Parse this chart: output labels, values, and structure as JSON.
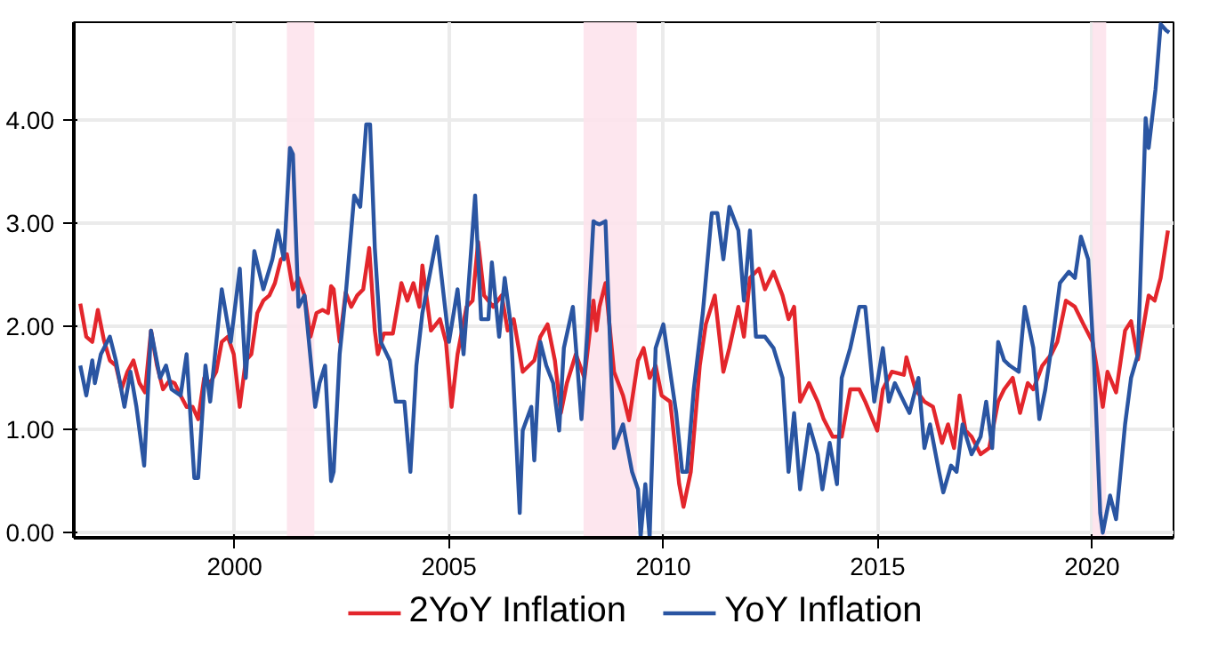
{
  "chart_data": {
    "type": "line",
    "xlim": [
      1996.25,
      2021.9
    ],
    "ylim": [
      -0.05,
      4.95
    ],
    "xticks": [
      2000,
      2005,
      2010,
      2015,
      2020
    ],
    "yticks": [
      {
        "value": 0,
        "label": "0.00"
      },
      {
        "value": 1,
        "label": "1.00"
      },
      {
        "value": 2,
        "label": "2.00"
      },
      {
        "value": 3,
        "label": "3.00"
      },
      {
        "value": 4,
        "label": "4.00"
      }
    ],
    "grid": true,
    "legend": "bottom",
    "line_style": "solid",
    "bands": [
      {
        "axis": "x",
        "from": 2001.22,
        "to": 2001.86,
        "color": "#fde3ec"
      },
      {
        "axis": "x",
        "from": 2008.14,
        "to": 2009.38,
        "color": "#fde3ec"
      },
      {
        "axis": "x",
        "from": 2020.01,
        "to": 2020.33,
        "color": "#fde3ec"
      }
    ],
    "series": [
      {
        "name": "2YoY Inflation",
        "color": "#e3262c",
        "x": [
          1996.4,
          1996.54,
          1996.68,
          1996.81,
          1996.95,
          1997.09,
          1997.23,
          1997.36,
          1997.5,
          1997.64,
          1997.78,
          1997.91,
          1998.05,
          1998.19,
          1998.33,
          1998.47,
          1998.6,
          1998.74,
          1998.88,
          1999.02,
          1999.15,
          1999.29,
          1999.43,
          1999.57,
          1999.7,
          1999.84,
          1999.98,
          2000.12,
          2000.26,
          2000.39,
          2000.53,
          2000.67,
          2000.81,
          2000.94,
          2001.08,
          2001.22,
          2001.36,
          2001.49,
          2001.63,
          2001.77,
          2001.91,
          2002.05,
          2002.18,
          2002.25,
          2002.31,
          2002.45,
          2002.59,
          2002.72,
          2002.86,
          2003.0,
          2003.14,
          2003.27,
          2003.34,
          2003.48,
          2003.69,
          2003.89,
          2004.03,
          2004.17,
          2004.31,
          2004.38,
          2004.58,
          2004.79,
          2004.93,
          2005.06,
          2005.2,
          2005.41,
          2005.55,
          2005.68,
          2005.82,
          2006.03,
          2006.23,
          2006.37,
          2006.51,
          2006.72,
          2006.99,
          2007.13,
          2007.3,
          2007.47,
          2007.61,
          2007.75,
          2007.96,
          2008.16,
          2008.37,
          2008.44,
          2008.51,
          2008.65,
          2008.85,
          2009.06,
          2009.2,
          2009.41,
          2009.54,
          2009.68,
          2009.82,
          2009.96,
          2010.16,
          2010.37,
          2010.47,
          2010.64,
          2010.85,
          2010.99,
          2011.2,
          2011.4,
          2011.54,
          2011.75,
          2011.88,
          2012.02,
          2012.23,
          2012.37,
          2012.57,
          2012.78,
          2012.92,
          2013.05,
          2013.19,
          2013.4,
          2013.6,
          2013.74,
          2013.95,
          2014.16,
          2014.36,
          2014.57,
          2014.71,
          2014.99,
          2015.12,
          2015.33,
          2015.61,
          2015.67,
          2015.88,
          2016.09,
          2016.29,
          2016.5,
          2016.64,
          2016.78,
          2016.91,
          2017.05,
          2017.19,
          2017.4,
          2017.6,
          2017.81,
          2017.95,
          2018.15,
          2018.32,
          2018.5,
          2018.63,
          2018.84,
          2019.05,
          2019.19,
          2019.39,
          2019.6,
          2019.8,
          2020.01,
          2020.15,
          2020.25,
          2020.36,
          2020.56,
          2020.77,
          2020.91,
          2021.07,
          2021.32,
          2021.46,
          2021.6,
          2021.77
        ],
        "values": [
          2.22,
          1.9,
          1.85,
          2.16,
          1.87,
          1.67,
          1.62,
          1.39,
          1.56,
          1.67,
          1.45,
          1.36,
          1.96,
          1.62,
          1.39,
          1.47,
          1.45,
          1.33,
          1.22,
          1.22,
          1.1,
          1.5,
          1.45,
          1.56,
          1.85,
          1.9,
          1.73,
          1.22,
          1.67,
          1.73,
          2.13,
          2.25,
          2.3,
          2.42,
          2.65,
          2.7,
          2.36,
          2.47,
          2.3,
          1.9,
          2.13,
          2.16,
          2.13,
          2.39,
          2.36,
          1.85,
          2.33,
          2.19,
          2.3,
          2.36,
          2.76,
          1.96,
          1.73,
          1.93,
          1.93,
          2.42,
          2.25,
          2.42,
          2.19,
          2.59,
          1.96,
          2.07,
          1.85,
          1.22,
          1.73,
          2.19,
          2.25,
          2.82,
          2.3,
          2.19,
          2.3,
          1.96,
          2.07,
          1.56,
          1.67,
          1.9,
          2.02,
          1.67,
          1.16,
          1.45,
          1.73,
          1.5,
          2.25,
          1.96,
          2.19,
          2.42,
          1.56,
          1.33,
          1.09,
          1.67,
          1.79,
          1.5,
          1.62,
          1.33,
          1.27,
          0.47,
          0.25,
          0.59,
          1.62,
          2.02,
          2.3,
          1.56,
          1.79,
          2.19,
          1.9,
          2.47,
          2.56,
          2.36,
          2.53,
          2.3,
          2.07,
          2.19,
          1.27,
          1.45,
          1.27,
          1.1,
          0.93,
          0.93,
          1.39,
          1.39,
          1.27,
          0.99,
          1.39,
          1.56,
          1.53,
          1.7,
          1.39,
          1.27,
          1.22,
          0.87,
          1.05,
          0.82,
          1.33,
          0.99,
          0.93,
          0.76,
          0.82,
          1.27,
          1.39,
          1.5,
          1.16,
          1.45,
          1.39,
          1.62,
          1.73,
          1.85,
          2.25,
          2.19,
          2.02,
          1.85,
          1.5,
          1.22,
          1.56,
          1.36,
          1.96,
          2.05,
          1.68,
          2.3,
          2.25,
          2.47,
          2.93
        ]
      },
      {
        "name": "YoY Inflation",
        "color": "#2a55a2",
        "x": [
          1996.4,
          1996.54,
          1996.68,
          1996.74,
          1996.88,
          1997.09,
          1997.23,
          1997.43,
          1997.57,
          1997.71,
          1997.89,
          1998.05,
          1998.26,
          1998.4,
          1998.53,
          1998.74,
          1998.88,
          1999.06,
          1999.15,
          1999.32,
          1999.43,
          1999.7,
          1999.91,
          2000.12,
          2000.26,
          2000.46,
          2000.67,
          2000.88,
          2001.01,
          2001.15,
          2001.29,
          2001.36,
          2001.49,
          2001.63,
          2001.88,
          2001.98,
          2002.11,
          2002.25,
          2002.31,
          2002.45,
          2002.59,
          2002.79,
          2002.93,
          2003.07,
          2003.16,
          2003.27,
          2003.41,
          2003.62,
          2003.76,
          2003.96,
          2004.1,
          2004.24,
          2004.38,
          2004.72,
          2005.0,
          2005.2,
          2005.34,
          2005.61,
          2005.75,
          2005.92,
          2006.0,
          2006.17,
          2006.3,
          2006.44,
          2006.65,
          2006.72,
          2006.92,
          2006.99,
          2007.13,
          2007.27,
          2007.43,
          2007.57,
          2007.68,
          2007.89,
          2008.09,
          2008.23,
          2008.37,
          2008.44,
          2008.51,
          2008.65,
          2008.85,
          2009.06,
          2009.27,
          2009.41,
          2009.47,
          2009.58,
          2009.68,
          2009.82,
          2010.0,
          2010.16,
          2010.3,
          2010.44,
          2010.55,
          2010.71,
          2010.92,
          2011.13,
          2011.26,
          2011.4,
          2011.54,
          2011.75,
          2011.88,
          2012.02,
          2012.16,
          2012.37,
          2012.57,
          2012.78,
          2012.92,
          2013.05,
          2013.19,
          2013.4,
          2013.6,
          2013.71,
          2013.88,
          2014.05,
          2014.16,
          2014.36,
          2014.57,
          2014.71,
          2014.92,
          2015.12,
          2015.26,
          2015.4,
          2015.61,
          2015.74,
          2015.95,
          2016.09,
          2016.22,
          2016.43,
          2016.53,
          2016.71,
          2016.84,
          2016.98,
          2017.19,
          2017.4,
          2017.53,
          2017.67,
          2017.81,
          2017.95,
          2018.08,
          2018.29,
          2018.43,
          2018.63,
          2018.77,
          2018.91,
          2019.09,
          2019.25,
          2019.46,
          2019.6,
          2019.74,
          2019.91,
          2020.05,
          2020.19,
          2020.25,
          2020.42,
          2020.56,
          2020.77,
          2020.91,
          2021.07,
          2021.25,
          2021.32,
          2021.48,
          2021.6,
          2021.73,
          2021.8
        ],
        "values": [
          1.62,
          1.33,
          1.67,
          1.45,
          1.73,
          1.9,
          1.67,
          1.22,
          1.56,
          1.22,
          0.65,
          1.96,
          1.5,
          1.62,
          1.39,
          1.33,
          1.73,
          0.53,
          0.53,
          1.62,
          1.27,
          2.36,
          1.85,
          2.56,
          1.5,
          2.73,
          2.36,
          2.65,
          2.93,
          2.65,
          3.73,
          3.67,
          2.19,
          2.3,
          1.22,
          1.45,
          1.62,
          0.5,
          0.59,
          1.73,
          2.3,
          3.27,
          3.16,
          3.96,
          3.96,
          2.76,
          1.85,
          1.67,
          1.27,
          1.27,
          0.59,
          1.62,
          2.13,
          2.87,
          1.85,
          2.36,
          1.73,
          3.27,
          2.07,
          2.07,
          2.62,
          1.9,
          2.47,
          2.02,
          0.19,
          0.99,
          1.22,
          0.7,
          1.85,
          1.62,
          1.45,
          0.99,
          1.79,
          2.19,
          1.1,
          1.96,
          3.02,
          3.0,
          2.99,
          3.02,
          0.82,
          1.05,
          0.59,
          0.42,
          -0.04,
          0.47,
          -0.04,
          1.79,
          2.02,
          1.56,
          1.16,
          0.59,
          0.59,
          1.39,
          2.13,
          3.1,
          3.1,
          2.65,
          3.16,
          2.93,
          2.25,
          2.93,
          1.9,
          1.9,
          1.79,
          1.5,
          0.59,
          1.16,
          0.42,
          1.05,
          0.76,
          0.42,
          0.87,
          0.47,
          1.5,
          1.79,
          2.19,
          2.19,
          1.27,
          1.79,
          1.27,
          1.45,
          1.27,
          1.16,
          1.5,
          0.82,
          1.05,
          0.59,
          0.39,
          0.65,
          0.59,
          1.05,
          0.76,
          0.93,
          1.27,
          0.82,
          1.85,
          1.67,
          1.62,
          1.56,
          2.19,
          1.79,
          1.1,
          1.39,
          1.9,
          2.42,
          2.53,
          2.47,
          2.87,
          2.65,
          1.62,
          0.19,
          0.0,
          0.36,
          0.13,
          1.05,
          1.5,
          1.73,
          4.02,
          3.73,
          4.3,
          4.93,
          4.87,
          4.85
        ]
      }
    ]
  }
}
